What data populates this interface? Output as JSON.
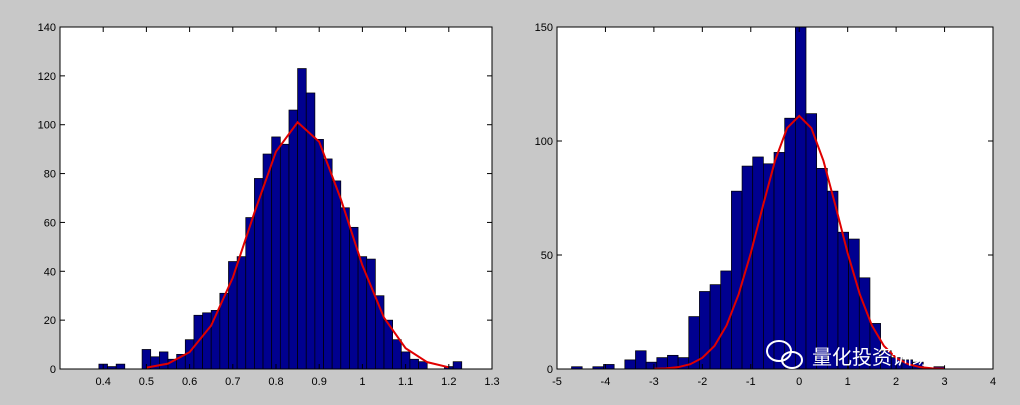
{
  "chart_data": [
    {
      "type": "histogram",
      "bins": [
        0.39,
        0.41,
        0.43,
        0.45,
        0.47,
        0.49,
        0.51,
        0.53,
        0.55,
        0.57,
        0.59,
        0.61,
        0.63,
        0.65,
        0.67,
        0.69,
        0.71,
        0.73,
        0.75,
        0.77,
        0.79,
        0.81,
        0.83,
        0.85,
        0.87,
        0.89,
        0.91,
        0.93,
        0.95,
        0.97,
        0.99,
        1.01,
        1.03,
        1.05,
        1.07,
        1.09,
        1.11,
        1.13,
        1.15,
        1.17,
        1.19,
        1.21,
        1.23
      ],
      "counts": [
        2,
        1,
        2,
        0,
        0,
        8,
        5,
        7,
        4,
        6,
        12,
        22,
        23,
        24,
        31,
        44,
        46,
        62,
        78,
        88,
        95,
        92,
        106,
        123,
        113,
        94,
        86,
        77,
        66,
        58,
        46,
        45,
        30,
        20,
        12,
        7,
        4,
        3,
        0,
        0,
        1,
        3
      ],
      "color": "#00008f",
      "fit": {
        "color": "#e00000",
        "x": [
          0.5,
          0.55,
          0.6,
          0.65,
          0.7,
          0.75,
          0.8,
          0.85,
          0.9,
          0.95,
          1.0,
          1.05,
          1.1,
          1.15,
          1.2
        ],
        "values": [
          0.55,
          2.2,
          6.9,
          17.8,
          37.4,
          64,
          89,
          101,
          93,
          69.6,
          42.4,
          21,
          8.5,
          2.8,
          0.7
        ]
      },
      "xlim": [
        0.3,
        1.3
      ],
      "ylim": [
        0,
        140
      ],
      "xticks": [
        0.4,
        0.5,
        0.6,
        0.7,
        0.8,
        0.9,
        1,
        1.1,
        1.2,
        1.3
      ],
      "yticks": [
        0,
        20,
        40,
        60,
        80,
        100,
        120,
        140
      ]
    },
    {
      "type": "histogram",
      "bins": [
        -4.7,
        -4.48,
        -4.26,
        -4.04,
        -3.82,
        -3.6,
        -3.38,
        -3.16,
        -2.94,
        -2.72,
        -2.5,
        -2.28,
        -2.06,
        -1.84,
        -1.62,
        -1.4,
        -1.18,
        -0.96,
        -0.74,
        -0.52,
        -0.3,
        -0.08,
        0.14,
        0.36,
        0.58,
        0.8,
        1.02,
        1.24,
        1.46,
        1.68,
        1.9,
        2.12,
        2.34,
        2.56,
        2.78,
        3.0
      ],
      "counts": [
        1,
        0,
        1,
        2,
        0,
        4,
        8,
        3,
        5,
        6,
        5,
        23,
        34,
        37,
        43,
        78,
        89,
        93,
        90,
        95,
        110,
        155,
        112,
        88,
        78,
        60,
        57,
        40,
        20,
        8,
        5,
        4,
        3,
        0,
        1
      ],
      "color": "#00008f",
      "fit": {
        "color": "#e00000",
        "x": [
          -3,
          -2.75,
          -2.5,
          -2.25,
          -2,
          -1.75,
          -1.5,
          -1.25,
          -1,
          -0.75,
          -0.5,
          -0.25,
          0,
          0.25,
          0.5,
          0.75,
          1,
          1.25,
          1.5,
          1.75,
          2,
          2.25,
          2.5,
          2.75,
          3
        ],
        "values": [
          0.1,
          0.3,
          0.8,
          2.1,
          4.9,
          10.1,
          19.1,
          32.8,
          50.8,
          71.5,
          91.3,
          105.7,
          111,
          105.7,
          91.3,
          71.5,
          50.8,
          32.8,
          19.1,
          10.1,
          4.9,
          2.1,
          0.8,
          0.3,
          0.1
        ]
      },
      "xlim": [
        -5,
        4
      ],
      "ylim": [
        0,
        150
      ],
      "xticks": [
        -5,
        -4,
        -3,
        -2,
        -1,
        0,
        1,
        2,
        3,
        4
      ],
      "yticks": [
        0,
        50,
        100,
        150
      ]
    }
  ],
  "watermark": "量化投资训练营"
}
